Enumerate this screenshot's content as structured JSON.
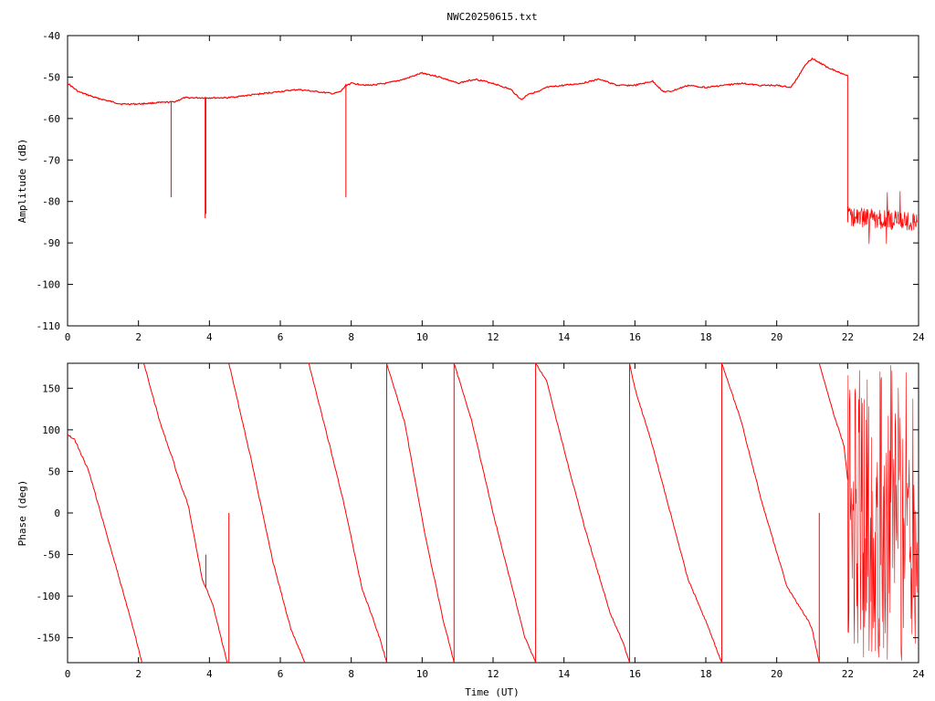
{
  "title": "NWC20250615.txt",
  "colors": {
    "series": "#ff0000",
    "axis": "#000000",
    "background": "#ffffff"
  },
  "chart_data": [
    {
      "type": "line",
      "title": "NWC20250615.txt",
      "xlabel": "",
      "ylabel": "Amplitude (dB)",
      "xlim": [
        0,
        24
      ],
      "ylim": [
        -110,
        -40
      ],
      "xticks": [
        "0",
        "2",
        "4",
        "6",
        "8",
        "10",
        "12",
        "14",
        "16",
        "18",
        "20",
        "22",
        "24"
      ],
      "yticks": [
        "-40",
        "-50",
        "-60",
        "-70",
        "-80",
        "-90",
        "-100",
        "-110"
      ],
      "grid": false,
      "series": [
        {
          "points": [
            [
              0,
              -51.5
            ],
            [
              0.3,
              -53.5
            ],
            [
              0.8,
              -55
            ],
            [
              1.5,
              -56.5
            ],
            [
              2.0,
              -56.5
            ],
            [
              2.5,
              -56.2
            ],
            [
              3.0,
              -56
            ],
            [
              3.3,
              -55
            ],
            [
              3.8,
              -55
            ],
            [
              4.5,
              -55
            ],
            [
              5.0,
              -54.5
            ],
            [
              5.5,
              -54
            ],
            [
              6.0,
              -53.5
            ],
            [
              6.5,
              -53
            ],
            [
              7.0,
              -53.5
            ],
            [
              7.5,
              -54
            ],
            [
              7.7,
              -53.5
            ],
            [
              7.85,
              -52
            ],
            [
              8.0,
              -51.5
            ],
            [
              8.5,
              -52
            ],
            [
              9.0,
              -51.5
            ],
            [
              9.5,
              -50.5
            ],
            [
              10.0,
              -49
            ],
            [
              10.5,
              -50
            ],
            [
              11.0,
              -51.5
            ],
            [
              11.5,
              -50.5
            ],
            [
              12.0,
              -51.5
            ],
            [
              12.5,
              -53
            ],
            [
              12.8,
              -55.5
            ],
            [
              13.0,
              -54
            ],
            [
              13.3,
              -53.5
            ],
            [
              13.5,
              -52.5
            ],
            [
              14.0,
              -52
            ],
            [
              14.5,
              -51.5
            ],
            [
              15.0,
              -50.5
            ],
            [
              15.5,
              -52
            ],
            [
              16.0,
              -52
            ],
            [
              16.5,
              -51
            ],
            [
              16.8,
              -53.5
            ],
            [
              17.0,
              -53.5
            ],
            [
              17.5,
              -52
            ],
            [
              18.0,
              -52.5
            ],
            [
              18.5,
              -52
            ],
            [
              19.0,
              -51.5
            ],
            [
              19.5,
              -52
            ],
            [
              20.0,
              -52
            ],
            [
              20.4,
              -52.5
            ],
            [
              20.6,
              -50
            ],
            [
              20.8,
              -47
            ],
            [
              21.0,
              -45.5
            ],
            [
              21.4,
              -47.5
            ],
            [
              21.8,
              -49
            ],
            [
              22.0,
              -49.5
            ]
          ],
          "spikes": [
            [
              2.92,
              -56,
              -79
            ],
            [
              3.88,
              -55,
              -84
            ],
            [
              3.9,
              -55,
              -83
            ],
            [
              7.85,
              -52,
              -79
            ]
          ]
        },
        {
          "noisy_segment": {
            "x_start": 22.0,
            "x_end": 24.0,
            "start_mean": -83.5,
            "end_mean": -85,
            "amplitude": 2.5,
            "peak_min": -78,
            "peak_max": -89
          }
        }
      ]
    },
    {
      "type": "line",
      "title": "",
      "xlabel": "Time (UT)",
      "ylabel": "Phase (deg)",
      "xlim": [
        0,
        24
      ],
      "ylim": [
        -180,
        180
      ],
      "xticks": [
        "0",
        "2",
        "4",
        "6",
        "8",
        "10",
        "12",
        "14",
        "16",
        "18",
        "20",
        "22",
        "24"
      ],
      "yticks": [
        "150",
        "100",
        "50",
        "0",
        "-50",
        "-100",
        "-150"
      ],
      "grid": false,
      "series": [
        {
          "ramps": [
            [
              [
                0,
                95
              ],
              [
                0.2,
                88
              ],
              [
                0.6,
                50
              ],
              [
                1.2,
                -40
              ],
              [
                1.8,
                -130
              ],
              [
                2.1,
                -180
              ]
            ],
            [
              [
                2.15,
                180
              ],
              [
                2.6,
                110
              ],
              [
                3.0,
                60
              ],
              [
                3.1,
                45
              ],
              [
                3.4,
                10
              ],
              [
                3.8,
                -80
              ],
              [
                4.1,
                -110
              ],
              [
                4.5,
                -180
              ]
            ],
            [
              [
                4.55,
                180
              ],
              [
                5.2,
                60
              ],
              [
                5.8,
                -60
              ],
              [
                6.3,
                -140
              ],
              [
                6.7,
                -180
              ]
            ],
            [
              [
                6.8,
                180
              ],
              [
                7.4,
                80
              ],
              [
                7.8,
                10
              ],
              [
                8.3,
                -90
              ],
              [
                8.8,
                -150
              ],
              [
                9.0,
                -180
              ]
            ],
            [
              [
                9.0,
                180
              ],
              [
                9.5,
                110
              ],
              [
                10.1,
                -30
              ],
              [
                10.6,
                -130
              ],
              [
                10.9,
                -180
              ]
            ],
            [
              [
                10.9,
                180
              ],
              [
                11.4,
                110
              ],
              [
                12.0,
                0
              ],
              [
                12.6,
                -100
              ],
              [
                12.9,
                -150
              ],
              [
                13.2,
                -180
              ]
            ],
            [
              [
                13.2,
                180
              ],
              [
                13.5,
                160
              ],
              [
                14.1,
                60
              ],
              [
                14.6,
                -20
              ],
              [
                15.3,
                -120
              ],
              [
                15.7,
                -160
              ],
              [
                15.85,
                -180
              ]
            ],
            [
              [
                15.85,
                180
              ],
              [
                16.0,
                150
              ],
              [
                16.5,
                80
              ],
              [
                17.0,
                0
              ],
              [
                17.5,
                -80
              ],
              [
                18.0,
                -130
              ],
              [
                18.45,
                -180
              ]
            ],
            [
              [
                18.45,
                180
              ],
              [
                19.0,
                110
              ],
              [
                19.6,
                10
              ],
              [
                20.3,
                -90
              ],
              [
                20.6,
                -110
              ],
              [
                20.9,
                -130
              ],
              [
                21.0,
                -140
              ],
              [
                21.2,
                -180
              ]
            ],
            [
              [
                21.2,
                180
              ],
              [
                21.6,
                120
              ],
              [
                21.9,
                80
              ],
              [
                22.0,
                40
              ]
            ]
          ],
          "spikes": [
            [
              3.9,
              -50,
              -90
            ],
            [
              4.55,
              0,
              -180
            ],
            [
              9.0,
              180,
              -180
            ],
            [
              10.9,
              180,
              -180
            ],
            [
              13.2,
              180,
              -180
            ],
            [
              15.85,
              180,
              -180
            ],
            [
              18.45,
              180,
              -180
            ],
            [
              21.2,
              0,
              -180
            ]
          ],
          "noisy_segment": {
            "x_start": 22.0,
            "x_end": 24.0,
            "min": -180,
            "max": 180
          }
        }
      ]
    }
  ]
}
